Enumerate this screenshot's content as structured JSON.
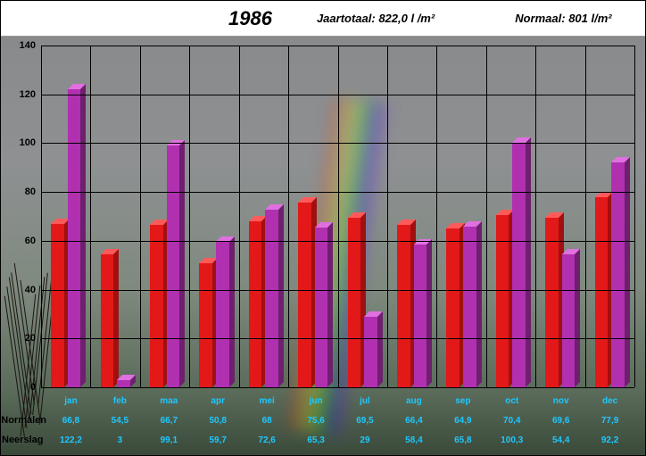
{
  "header": {
    "title": "1986",
    "total_label": "Jaartotaal:",
    "total_value": "822,0 l /m²",
    "normal_label": "Normaal:",
    "normal_value": "801 l/m²"
  },
  "chart": {
    "type": "bar",
    "ylim": [
      0,
      140
    ],
    "ytick_step": 20,
    "yticks": [
      0,
      20,
      40,
      60,
      80,
      100,
      120,
      140
    ],
    "grid_color": "#000000",
    "categories": [
      "jan",
      "feb",
      "maa",
      "apr",
      "mei",
      "jun",
      "jul",
      "aug",
      "sep",
      "oct",
      "nov",
      "dec"
    ],
    "series": [
      {
        "name": "Normalen",
        "color": "#e31818",
        "top_color": "#ff5a5a",
        "side_color": "#a01010",
        "swatch": "#ff0000",
        "values": [
          66.8,
          54.5,
          66.7,
          50.8,
          68,
          75.6,
          69.5,
          66.4,
          64.9,
          70.4,
          69.6,
          77.9
        ],
        "labels": [
          "66,8",
          "54,5",
          "66,7",
          "50,8",
          "68",
          "75,6",
          "69,5",
          "66,4",
          "64,9",
          "70,4",
          "69,6",
          "77,9"
        ]
      },
      {
        "name": "Neerslag",
        "color": "#b030b0",
        "top_color": "#e070e0",
        "side_color": "#6e1f6e",
        "swatch": "#c040c0",
        "values": [
          122.2,
          3,
          99.1,
          59.7,
          72.6,
          65.3,
          29,
          58.4,
          65.8,
          100.3,
          54.4,
          92.2
        ],
        "labels": [
          "122,2",
          "3",
          "99,1",
          "59,7",
          "72,6",
          "65,3",
          "29",
          "58,4",
          "65,8",
          "100,3",
          "54,4",
          "92,2"
        ]
      }
    ],
    "bar_width_pct": 2.2,
    "cluster_gap_pct": 0.6,
    "label_color": "#1ec8ff",
    "label_fontsize": 10
  }
}
